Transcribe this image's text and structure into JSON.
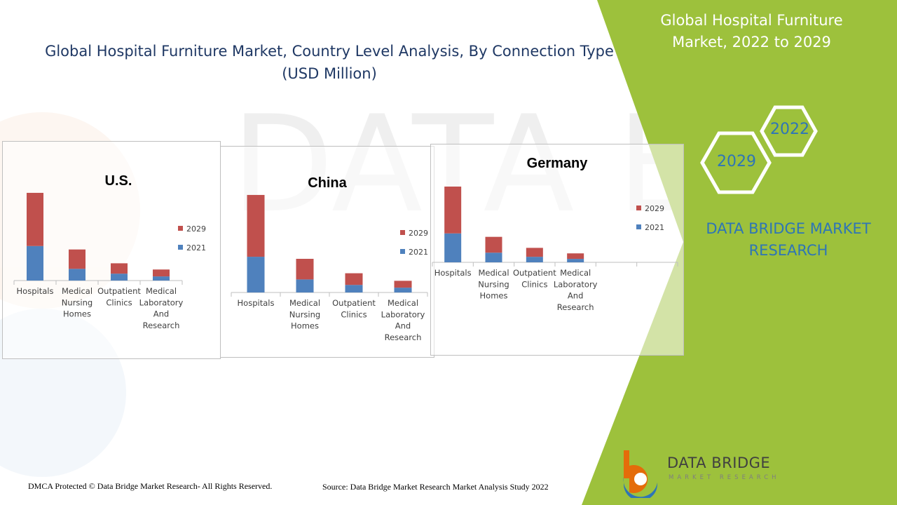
{
  "header": {
    "title": "Global Hospital Furniture Market, Country Level Analysis, By Connection Type (USD Million)",
    "side_title": "Global Hospital Furniture Market, 2022 to 2029"
  },
  "badges": {
    "year_a": "2022",
    "year_b": "2029"
  },
  "brand": {
    "name": "DATA BRIDGE MARKET RESEARCH",
    "logo_text": "DATA BRIDGE",
    "logo_sub": "MARKET RESEARCH"
  },
  "footer": {
    "copyright": "DMCA Protected © Data Bridge Market Research- All Rights Reserved.",
    "source": "Source: Data Bridge Market Research Market Analysis Study 2022"
  },
  "colors": {
    "green": "#9dc13c",
    "series_2021": "#4f81bd",
    "series_2029": "#c0504d",
    "title_blue": "#1f3864",
    "brand_blue": "#2e75b6"
  },
  "chart_data": [
    {
      "type": "bar",
      "stacked": true,
      "title": "U.S.",
      "categories": [
        "Hospitals",
        "Medical Nursing Homes",
        "Outpatient Clinics",
        "Medical Laboratory And Research"
      ],
      "series": [
        {
          "name": "2021",
          "values": [
            50,
            17,
            10,
            6
          ]
        },
        {
          "name": "2029",
          "values": [
            77,
            28,
            15,
            10
          ]
        }
      ],
      "ylim": [
        0,
        130
      ],
      "legend": "right"
    },
    {
      "type": "bar",
      "stacked": true,
      "title": "China",
      "categories": [
        "Hospitals",
        "Medical Nursing Homes",
        "Outpatient Clinics",
        "Medical Laboratory And Research"
      ],
      "series": [
        {
          "name": "2021",
          "values": [
            52,
            19,
            11,
            7
          ]
        },
        {
          "name": "2029",
          "values": [
            90,
            30,
            17,
            10
          ]
        }
      ],
      "ylim": [
        0,
        145
      ],
      "legend": "right"
    },
    {
      "type": "bar",
      "stacked": true,
      "title": "Germany",
      "categories": [
        "Hospitals",
        "Medical Nursing Homes",
        "Outpatient Clinics",
        "Medical Laboratory And Research",
        "",
        ""
      ],
      "series": [
        {
          "name": "2021",
          "values": [
            42,
            14,
            8,
            5,
            0,
            0
          ]
        },
        {
          "name": "2029",
          "values": [
            68,
            23,
            13,
            8,
            0,
            0
          ]
        }
      ],
      "ylim": [
        0,
        110
      ],
      "legend": "right"
    }
  ]
}
